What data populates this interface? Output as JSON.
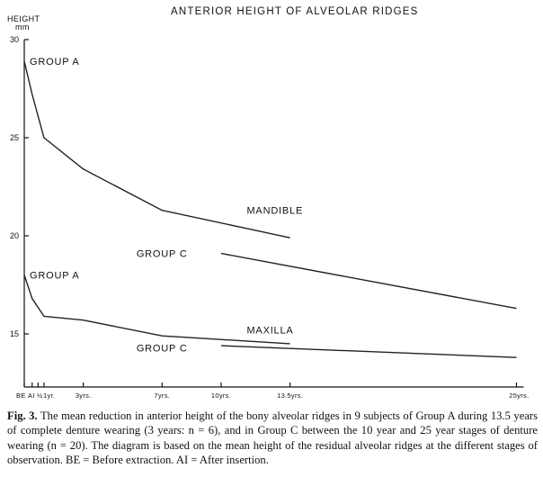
{
  "chart_data": {
    "type": "line",
    "title": "ANTERIOR HEIGHT OF ALVEOLAR RIDGES",
    "ylabel": "HEIGHT",
    "yunit": "mm",
    "ylim": [
      13,
      30
    ],
    "yticks": [
      {
        "value": 30,
        "label": "30"
      },
      {
        "value": 25,
        "label": "25"
      },
      {
        "value": 20,
        "label": "20"
      },
      {
        "value": 15,
        "label": "15"
      }
    ],
    "xticks": [
      {
        "x": 0,
        "label": "BE"
      },
      {
        "x": 0.4,
        "label": "AI"
      },
      {
        "x": 0.7,
        "label": "½"
      },
      {
        "x": 1.0,
        "label": "1yr."
      },
      {
        "x": 3,
        "label": "3yrs."
      },
      {
        "x": 7,
        "label": "7yrs."
      },
      {
        "x": 10,
        "label": "10yrs."
      },
      {
        "x": 13.5,
        "label": "13.5yrs."
      },
      {
        "x": 25,
        "label": "25yrs."
      }
    ],
    "series": [
      {
        "name": "mandible-group-a",
        "x": [
          0,
          0.4,
          1,
          3,
          7,
          13.5
        ],
        "y": [
          28.9,
          27.2,
          25.0,
          23.4,
          21.3,
          19.9
        ]
      },
      {
        "name": "mandible-group-c",
        "x": [
          10,
          25
        ],
        "y": [
          19.1,
          16.3
        ]
      },
      {
        "name": "maxilla-group-a",
        "x": [
          0,
          0.4,
          1,
          3,
          7,
          13.5
        ],
        "y": [
          18.0,
          16.8,
          15.9,
          15.7,
          14.9,
          14.5
        ]
      },
      {
        "name": "maxilla-group-c",
        "x": [
          10,
          25
        ],
        "y": [
          14.4,
          13.8
        ]
      }
    ],
    "annotations": [
      {
        "label": "GROUP A",
        "x": 0,
        "y": 28.9
      },
      {
        "label": "MANDIBLE",
        "x": 11.3,
        "y": 21.3
      },
      {
        "label": "GROUP C",
        "x": 5.7,
        "y": 19.1
      },
      {
        "label": "GROUP A",
        "x": 0,
        "y": 18.0
      },
      {
        "label": "MAXILLA",
        "x": 11.3,
        "y": 15.2
      },
      {
        "label": "GROUP C",
        "x": 5.7,
        "y": 14.3
      }
    ]
  },
  "caption": {
    "figure_label": "Fig. 3.",
    "text": "The mean reduction in anterior height of the bony alveolar ridges in 9 subjects of Group A during 13.5 years of complete denture wearing (3 years: n = 6), and in Group C between the 10 year and 25 year stages of denture wearing (n = 20). The diagram is based on the mean height of the residual alveolar ridges at the different stages of observation. BE = Before extraction. AI = After insertion."
  }
}
